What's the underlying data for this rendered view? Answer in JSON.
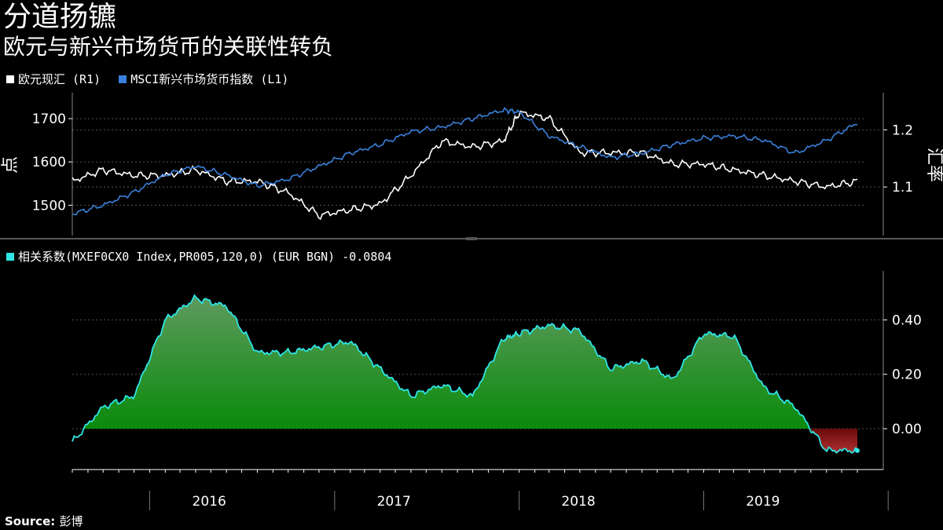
{
  "title": "分道扬镳",
  "subtitle": "欧元与新兴市场货币的关联性转负",
  "source_label": "Source:",
  "source_text": "彭博",
  "top_legend": [
    {
      "label": "欧元现汇 (R1)",
      "color": "#ffffff"
    },
    {
      "label": "MSCI新兴市场货币指数 (L1)",
      "color": "#3a7fd9"
    }
  ],
  "bottom_legend": {
    "label": "相关系数(MXEF0CX0 Index,PR005,120,0) (EUR BGN) -0.0804",
    "color": "#2ee6e6"
  },
  "chart_data": [
    {
      "type": "line",
      "ylabel_left": "点",
      "ylabel_right": "汇率",
      "ylim_left": [
        1430,
        1760
      ],
      "ylim_right": [
        1.015,
        1.265
      ],
      "yticks_left": [
        1500,
        1600,
        1700
      ],
      "yticks_right": [
        1.1,
        1.2
      ],
      "x": [
        "2015-08",
        "2015-10",
        "2015-12",
        "2016-02",
        "2016-04",
        "2016-06",
        "2016-08",
        "2016-10",
        "2016-12",
        "2017-02",
        "2017-04",
        "2017-06",
        "2017-08",
        "2017-10",
        "2017-12",
        "2018-01",
        "2018-03",
        "2018-05",
        "2018-07",
        "2018-09",
        "2018-11",
        "2019-01",
        "2019-03",
        "2019-05",
        "2019-07",
        "2019-09",
        "2019-11"
      ],
      "series": [
        {
          "name": "欧元现汇 (R1)",
          "axis": "right",
          "color": "#ffffff",
          "values": [
            1.11,
            1.13,
            1.12,
            1.12,
            1.13,
            1.11,
            1.11,
            1.09,
            1.05,
            1.06,
            1.07,
            1.12,
            1.18,
            1.17,
            1.18,
            1.23,
            1.22,
            1.16,
            1.16,
            1.16,
            1.14,
            1.14,
            1.13,
            1.12,
            1.11,
            1.1,
            1.11
          ]
        },
        {
          "name": "MSCI新兴市场货币指数 (L1)",
          "axis": "left",
          "color": "#3a7fd9",
          "values": [
            1480,
            1500,
            1530,
            1570,
            1590,
            1570,
            1545,
            1560,
            1590,
            1620,
            1640,
            1670,
            1680,
            1700,
            1720,
            1715,
            1660,
            1635,
            1610,
            1620,
            1640,
            1655,
            1660,
            1650,
            1620,
            1650,
            1690
          ]
        }
      ]
    },
    {
      "type": "area",
      "ylim": [
        -0.15,
        0.58
      ],
      "yticks": [
        0.0,
        0.2,
        0.4
      ],
      "ytick_labels": [
        "0.00",
        "0.20",
        "0.40"
      ],
      "x": [
        "2015-08",
        "2015-10",
        "2015-12",
        "2016-02",
        "2016-04",
        "2016-06",
        "2016-08",
        "2016-10",
        "2016-12",
        "2017-02",
        "2017-04",
        "2017-06",
        "2017-08",
        "2017-10",
        "2017-12",
        "2018-01",
        "2018-03",
        "2018-05",
        "2018-07",
        "2018-09",
        "2018-11",
        "2019-01",
        "2019-03",
        "2019-05",
        "2019-07",
        "2019-09",
        "2019-11"
      ],
      "series": [
        {
          "name": "相关系数",
          "color": "#2ee6e6",
          "values": [
            -0.05,
            0.08,
            0.12,
            0.4,
            0.48,
            0.45,
            0.28,
            0.28,
            0.3,
            0.32,
            0.22,
            0.12,
            0.16,
            0.12,
            0.33,
            0.35,
            0.38,
            0.36,
            0.22,
            0.25,
            0.18,
            0.35,
            0.34,
            0.15,
            0.08,
            -0.08,
            -0.08
          ]
        }
      ],
      "last_value": -0.0804
    }
  ],
  "x_axis": {
    "years": [
      "2016",
      "2017",
      "2018",
      "2019"
    ]
  }
}
